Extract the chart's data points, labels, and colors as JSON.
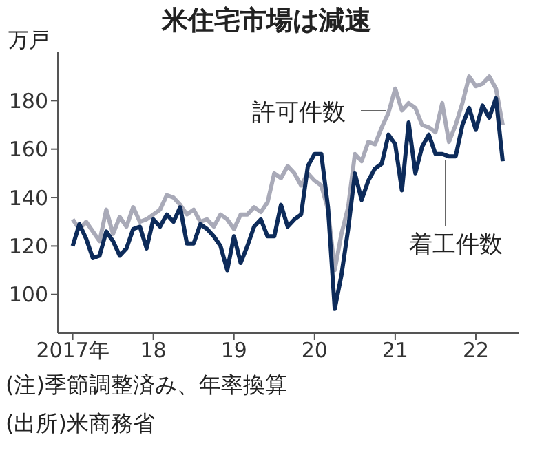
{
  "chart_data": {
    "type": "line",
    "title": "米住宅市場は減速",
    "ylabel": "万戸",
    "x": [
      "2017-01",
      "2017-02",
      "2017-03",
      "2017-04",
      "2017-05",
      "2017-06",
      "2017-07",
      "2017-08",
      "2017-09",
      "2017-10",
      "2017-11",
      "2017-12",
      "2018-01",
      "2018-02",
      "2018-03",
      "2018-04",
      "2018-05",
      "2018-06",
      "2018-07",
      "2018-08",
      "2018-09",
      "2018-10",
      "2018-11",
      "2018-12",
      "2019-01",
      "2019-02",
      "2019-03",
      "2019-04",
      "2019-05",
      "2019-06",
      "2019-07",
      "2019-08",
      "2019-09",
      "2019-10",
      "2019-11",
      "2019-12",
      "2020-01",
      "2020-02",
      "2020-03",
      "2020-04",
      "2020-05",
      "2020-06",
      "2020-07",
      "2020-08",
      "2020-09",
      "2020-10",
      "2020-11",
      "2020-12",
      "2021-01",
      "2021-02",
      "2021-03",
      "2021-04",
      "2021-05",
      "2021-06",
      "2021-07",
      "2021-08",
      "2021-09",
      "2021-10",
      "2021-11",
      "2021-12",
      "2022-01",
      "2022-02",
      "2022-03",
      "2022-04",
      "2022-05"
    ],
    "series": [
      {
        "name": "許可件数",
        "color": "#a9aab8",
        "values": [
          131,
          127,
          130,
          126,
          122,
          135,
          125,
          132,
          128,
          136,
          130,
          131,
          133,
          135,
          141,
          140,
          137,
          133,
          135,
          130,
          131,
          128,
          133,
          131,
          127,
          133,
          133,
          136,
          134,
          138,
          150,
          148,
          153,
          150,
          145,
          150,
          147,
          145,
          135,
          110,
          125,
          136,
          158,
          155,
          163,
          162,
          169,
          175,
          185,
          176,
          179,
          177,
          170,
          169,
          167,
          179,
          163,
          170,
          179,
          190,
          186,
          187,
          190,
          185,
          170
        ]
      },
      {
        "name": "着工件数",
        "color": "#0d2b5a",
        "values": [
          120,
          129,
          123,
          115,
          116,
          126,
          122,
          116,
          119,
          127,
          128,
          119,
          131,
          128,
          133,
          130,
          136,
          121,
          121,
          129,
          127,
          124,
          120,
          110,
          124,
          113,
          120,
          128,
          131,
          124,
          124,
          137,
          128,
          131,
          133,
          153,
          158,
          158,
          136,
          94,
          108,
          127,
          150,
          139,
          147,
          152,
          154,
          166,
          162,
          143,
          171,
          150,
          161,
          166,
          158,
          158,
          157,
          157,
          170,
          177,
          168,
          178,
          173,
          181,
          155
        ]
      }
    ],
    "xlim": [
      "2016-10-25",
      "2022-07-15"
    ],
    "xticks": [
      {
        "value": "2017-01",
        "label": "2017年"
      },
      {
        "value": "2018-01",
        "label": "18"
      },
      {
        "value": "2019-01",
        "label": "19"
      },
      {
        "value": "2020-01",
        "label": "20"
      },
      {
        "value": "2021-01",
        "label": "21"
      },
      {
        "value": "2022-01",
        "label": "22"
      }
    ],
    "ylim": [
      84,
      200
    ],
    "yticks": [
      100,
      120,
      140,
      160,
      180
    ],
    "grid": false,
    "legend": false,
    "marker": "none",
    "line_style": "solid",
    "annotations": [
      "(注)季節調整済み、年率換算",
      "(出所)米商務省"
    ]
  }
}
